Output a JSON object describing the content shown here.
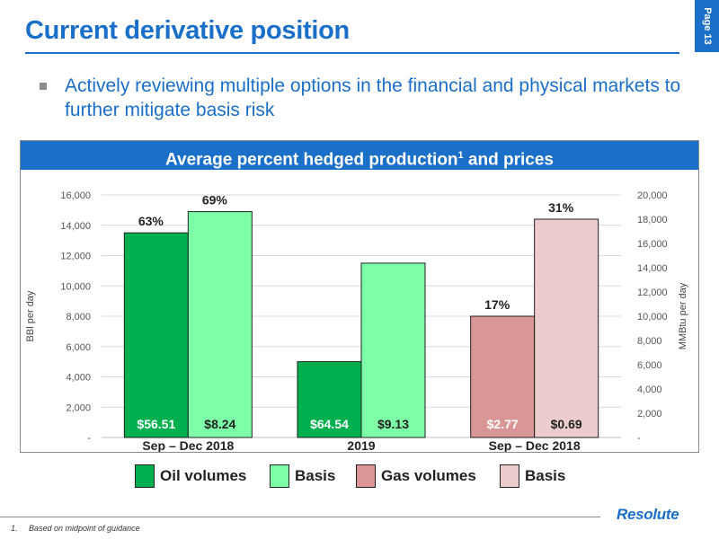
{
  "slide": {
    "title": "Current derivative position",
    "page_label": "Page 13"
  },
  "bullet": {
    "text": "Actively reviewing multiple options in the financial and physical markets to further mitigate basis risk"
  },
  "chart_header": {
    "text": "Average percent hedged production",
    "superscript": "1",
    "suffix": " and prices"
  },
  "chart_data": {
    "type": "bar",
    "left_axis": {
      "label": "BBl per day",
      "ticks": [
        "-",
        "2,000",
        "4,000",
        "6,000",
        "8,000",
        "10,000",
        "12,000",
        "14,000",
        "16,000"
      ],
      "range": [
        0,
        16000
      ]
    },
    "right_axis": {
      "label": "MMBtu per day",
      "ticks": [
        "-",
        "2,000",
        "4,000",
        "6,000",
        "8,000",
        "10,000",
        "12,000",
        "14,000",
        "16,000",
        "18,000",
        "20,000"
      ],
      "range": [
        0,
        20000
      ]
    },
    "groups": [
      {
        "label": "Sep – Dec 2018",
        "bars": [
          {
            "series": "Oil volumes",
            "axis": "left",
            "value": 13500,
            "color": "#00b04f",
            "pct": "63%",
            "price": "$56.51"
          },
          {
            "series": "Basis",
            "axis": "left",
            "value": 14900,
            "color": "#7dffa8",
            "pct": "69%",
            "price": "$8.24"
          }
        ]
      },
      {
        "label": "2019",
        "bars": [
          {
            "series": "Oil volumes",
            "axis": "left",
            "value": 5000,
            "color": "#00b04f",
            "pct": "",
            "price": "$64.54"
          },
          {
            "series": "Basis",
            "axis": "left",
            "value": 11500,
            "color": "#7dffa8",
            "pct": "",
            "price": "$9.13"
          }
        ]
      },
      {
        "label": "Sep – Dec 2018",
        "bars": [
          {
            "series": "Gas volumes",
            "axis": "right",
            "value": 10000,
            "color": "#d99694",
            "pct": "17%",
            "price": "$2.77"
          },
          {
            "series": "Basis",
            "axis": "right",
            "value": 18000,
            "color": "#eccccc",
            "pct": "31%",
            "price": "$0.69"
          }
        ]
      }
    ]
  },
  "legend": [
    {
      "label": "Oil volumes",
      "color": "#00b04f"
    },
    {
      "label": "Basis",
      "color": "#7dffa8"
    },
    {
      "label": "Gas volumes",
      "color": "#d99694"
    },
    {
      "label": "Basis",
      "color": "#eccccc"
    }
  ],
  "footnote": {
    "number": "1.",
    "text": "Based on midpoint of guidance"
  },
  "logo": {
    "text": "Resolute"
  }
}
